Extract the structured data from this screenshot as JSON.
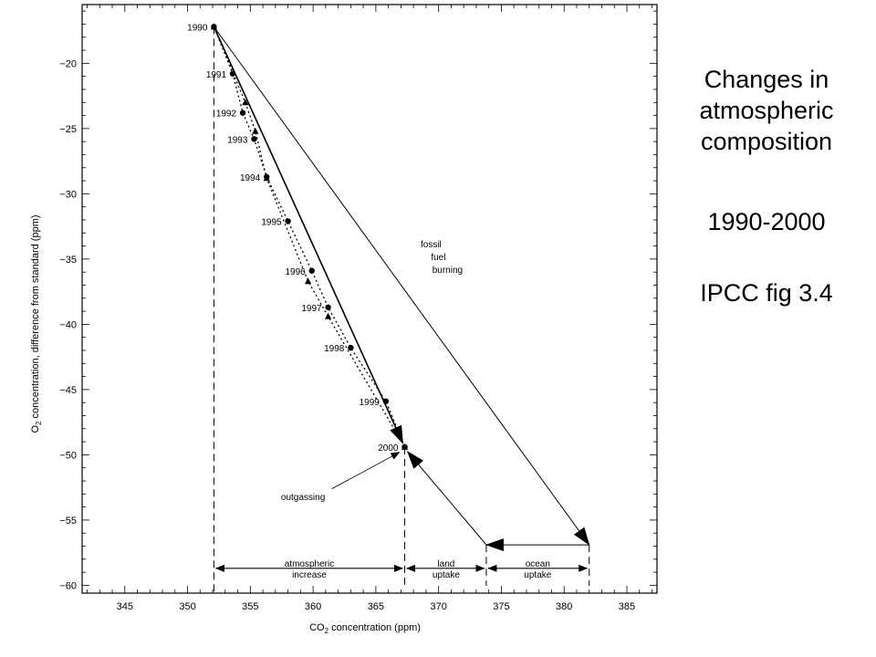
{
  "side_text": {
    "title_lines": [
      "Changes in",
      "atmospheric",
      "composition"
    ],
    "years": "1990-2000",
    "source": "IPCC fig 3.4"
  },
  "chart_data": {
    "type": "line",
    "xlabel": "CO2 concentration (ppm)",
    "ylabel": "O2 concentration, difference from standard (ppm)",
    "xlim": [
      341.6,
      387.4
    ],
    "ylim": [
      -60.6,
      -15.5
    ],
    "x_ticks": [
      345,
      350,
      355,
      360,
      365,
      370,
      375,
      380,
      385
    ],
    "y_ticks": [
      -20,
      -25,
      -30,
      -35,
      -40,
      -45,
      -50,
      -55,
      -60
    ],
    "grid": false,
    "series": [
      {
        "marker": "circle",
        "line": "dotted",
        "points": [
          {
            "label": "1990",
            "x": 352.1,
            "y": -17.2
          },
          {
            "label": "1991",
            "x": 353.6,
            "y": -20.8
          },
          {
            "label": "1992",
            "x": 354.4,
            "y": -23.8
          },
          {
            "label": "1993",
            "x": 355.3,
            "y": -25.8
          },
          {
            "label": "1994",
            "x": 356.3,
            "y": -28.7
          },
          {
            "label": "1995",
            "x": 358.0,
            "y": -32.1
          },
          {
            "label": "1996",
            "x": 359.9,
            "y": -35.9
          },
          {
            "label": "1997",
            "x": 361.2,
            "y": -38.7
          },
          {
            "label": "1998",
            "x": 363.0,
            "y": -41.8
          },
          {
            "label": "1999",
            "x": 365.8,
            "y": -45.9
          },
          {
            "label": "2000",
            "x": 367.3,
            "y": -49.4
          }
        ]
      },
      {
        "marker": "triangle",
        "line": "dotted",
        "points": [
          {
            "x": 352.1,
            "y": -17.2
          },
          {
            "x": 354.6,
            "y": -23.0
          },
          {
            "x": 355.4,
            "y": -25.2
          },
          {
            "x": 356.3,
            "y": -28.8
          },
          {
            "x": 359.6,
            "y": -36.7
          },
          {
            "x": 361.2,
            "y": -39.4
          },
          {
            "x": 367.3,
            "y": -49.4
          }
        ]
      }
    ],
    "budget": {
      "start": {
        "x": 352.1,
        "y": -17.2
      },
      "observed": {
        "x": 367.3,
        "y": -49.4
      },
      "fossil_end": {
        "x": 382.0,
        "y": -56.9
      },
      "ocean_end": {
        "x": 373.8,
        "y": -56.9
      },
      "outgassing_target": {
        "x": 366.9,
        "y": -49.8
      },
      "bracket_y": -58.7,
      "bracket_x": [
        352.1,
        367.3,
        373.8,
        382.0
      ]
    },
    "annotations": [
      {
        "lines": [
          "fossil",
          "fuel",
          "burning"
        ],
        "x": 369.4,
        "y": -34.8
      },
      {
        "lines": [
          "outgassing"
        ],
        "x": 359.2,
        "y": -53.2
      },
      {
        "lines": [
          "atmospheric",
          "increase"
        ],
        "x": 359.7,
        "y": -58.7
      },
      {
        "lines": [
          "land",
          "uptake"
        ],
        "x": 370.6,
        "y": -58.7
      },
      {
        "lines": [
          "ocean",
          "uptake"
        ],
        "x": 377.9,
        "y": -58.7
      }
    ]
  }
}
